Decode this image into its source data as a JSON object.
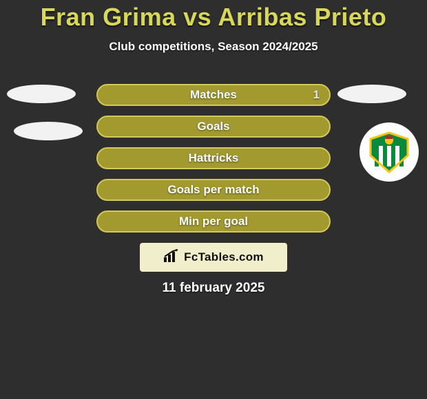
{
  "colors": {
    "background": "#2e2e2e",
    "title": "#d8d75a",
    "subtitle": "#ffffff",
    "row_fill": "#a29a2f",
    "row_stroke": "#d2c95a",
    "row_label": "#ffffff",
    "row_label_shadow": "#333333",
    "value_right": "#e6e6e6",
    "avatar_fill": "#f2f2f2",
    "badge_bg": "#ffffff",
    "club_green": "#0b8a3e",
    "club_gold": "#f5c518",
    "club_red": "#c2202c",
    "brand_bg": "#f1eecb",
    "brand_text": "#111111",
    "brand_icon": "#111111",
    "date": "#ffffff"
  },
  "typography": {
    "title_size": 36,
    "subtitle_size": 17,
    "row_label_size": 17,
    "value_size": 17,
    "brand_size": 17,
    "date_size": 19
  },
  "title": "Fran Grima vs Arribas Prieto",
  "subtitle": "Club competitions, Season 2024/2025",
  "rows": [
    {
      "label": "Matches",
      "value_right": "1"
    },
    {
      "label": "Goals",
      "value_right": ""
    },
    {
      "label": "Hattricks",
      "value_right": ""
    },
    {
      "label": "Goals per match",
      "value_right": ""
    },
    {
      "label": "Min per goal",
      "value_right": ""
    }
  ],
  "branding": {
    "text": "FcTables.com"
  },
  "date": "11 february 2025",
  "row_style": {
    "height": 32,
    "gap": 14,
    "border_radius": 16,
    "border_width": 2
  }
}
